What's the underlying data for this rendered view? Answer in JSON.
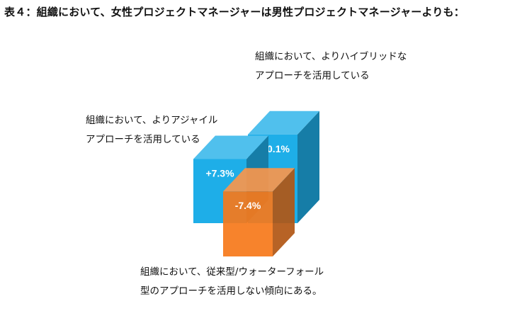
{
  "title": "表４：組織において、女性プロジェクトマネージャーは男性プロジェクトマネージャーよりも：",
  "labels": {
    "hybrid": [
      "組織において、よりハイブリッドな",
      "アプローチを活用している"
    ],
    "agile": [
      "組織において、よりアジャイル",
      "アプローチを活用している"
    ],
    "waterfall": [
      "組織において、従来型/ウォーターフォール",
      "型のアプローチを活用しない傾向にある。"
    ]
  },
  "chart_data": {
    "type": "bar",
    "categories": [
      "組織において、よりアジャイルアプローチを活用している",
      "組織において、よりハイブリッドなアプローチを活用している",
      "組織において、従来型/ウォーターフォール型のアプローチを活用しない傾向にある。"
    ],
    "values": [
      7.3,
      10.1,
      -7.4
    ],
    "value_labels": [
      "+7.3%",
      "+10.1%",
      "-7.4%"
    ],
    "colors": [
      "#1eaee8",
      "#1eaee8",
      "#f6781a"
    ],
    "style": "3d-columns"
  }
}
